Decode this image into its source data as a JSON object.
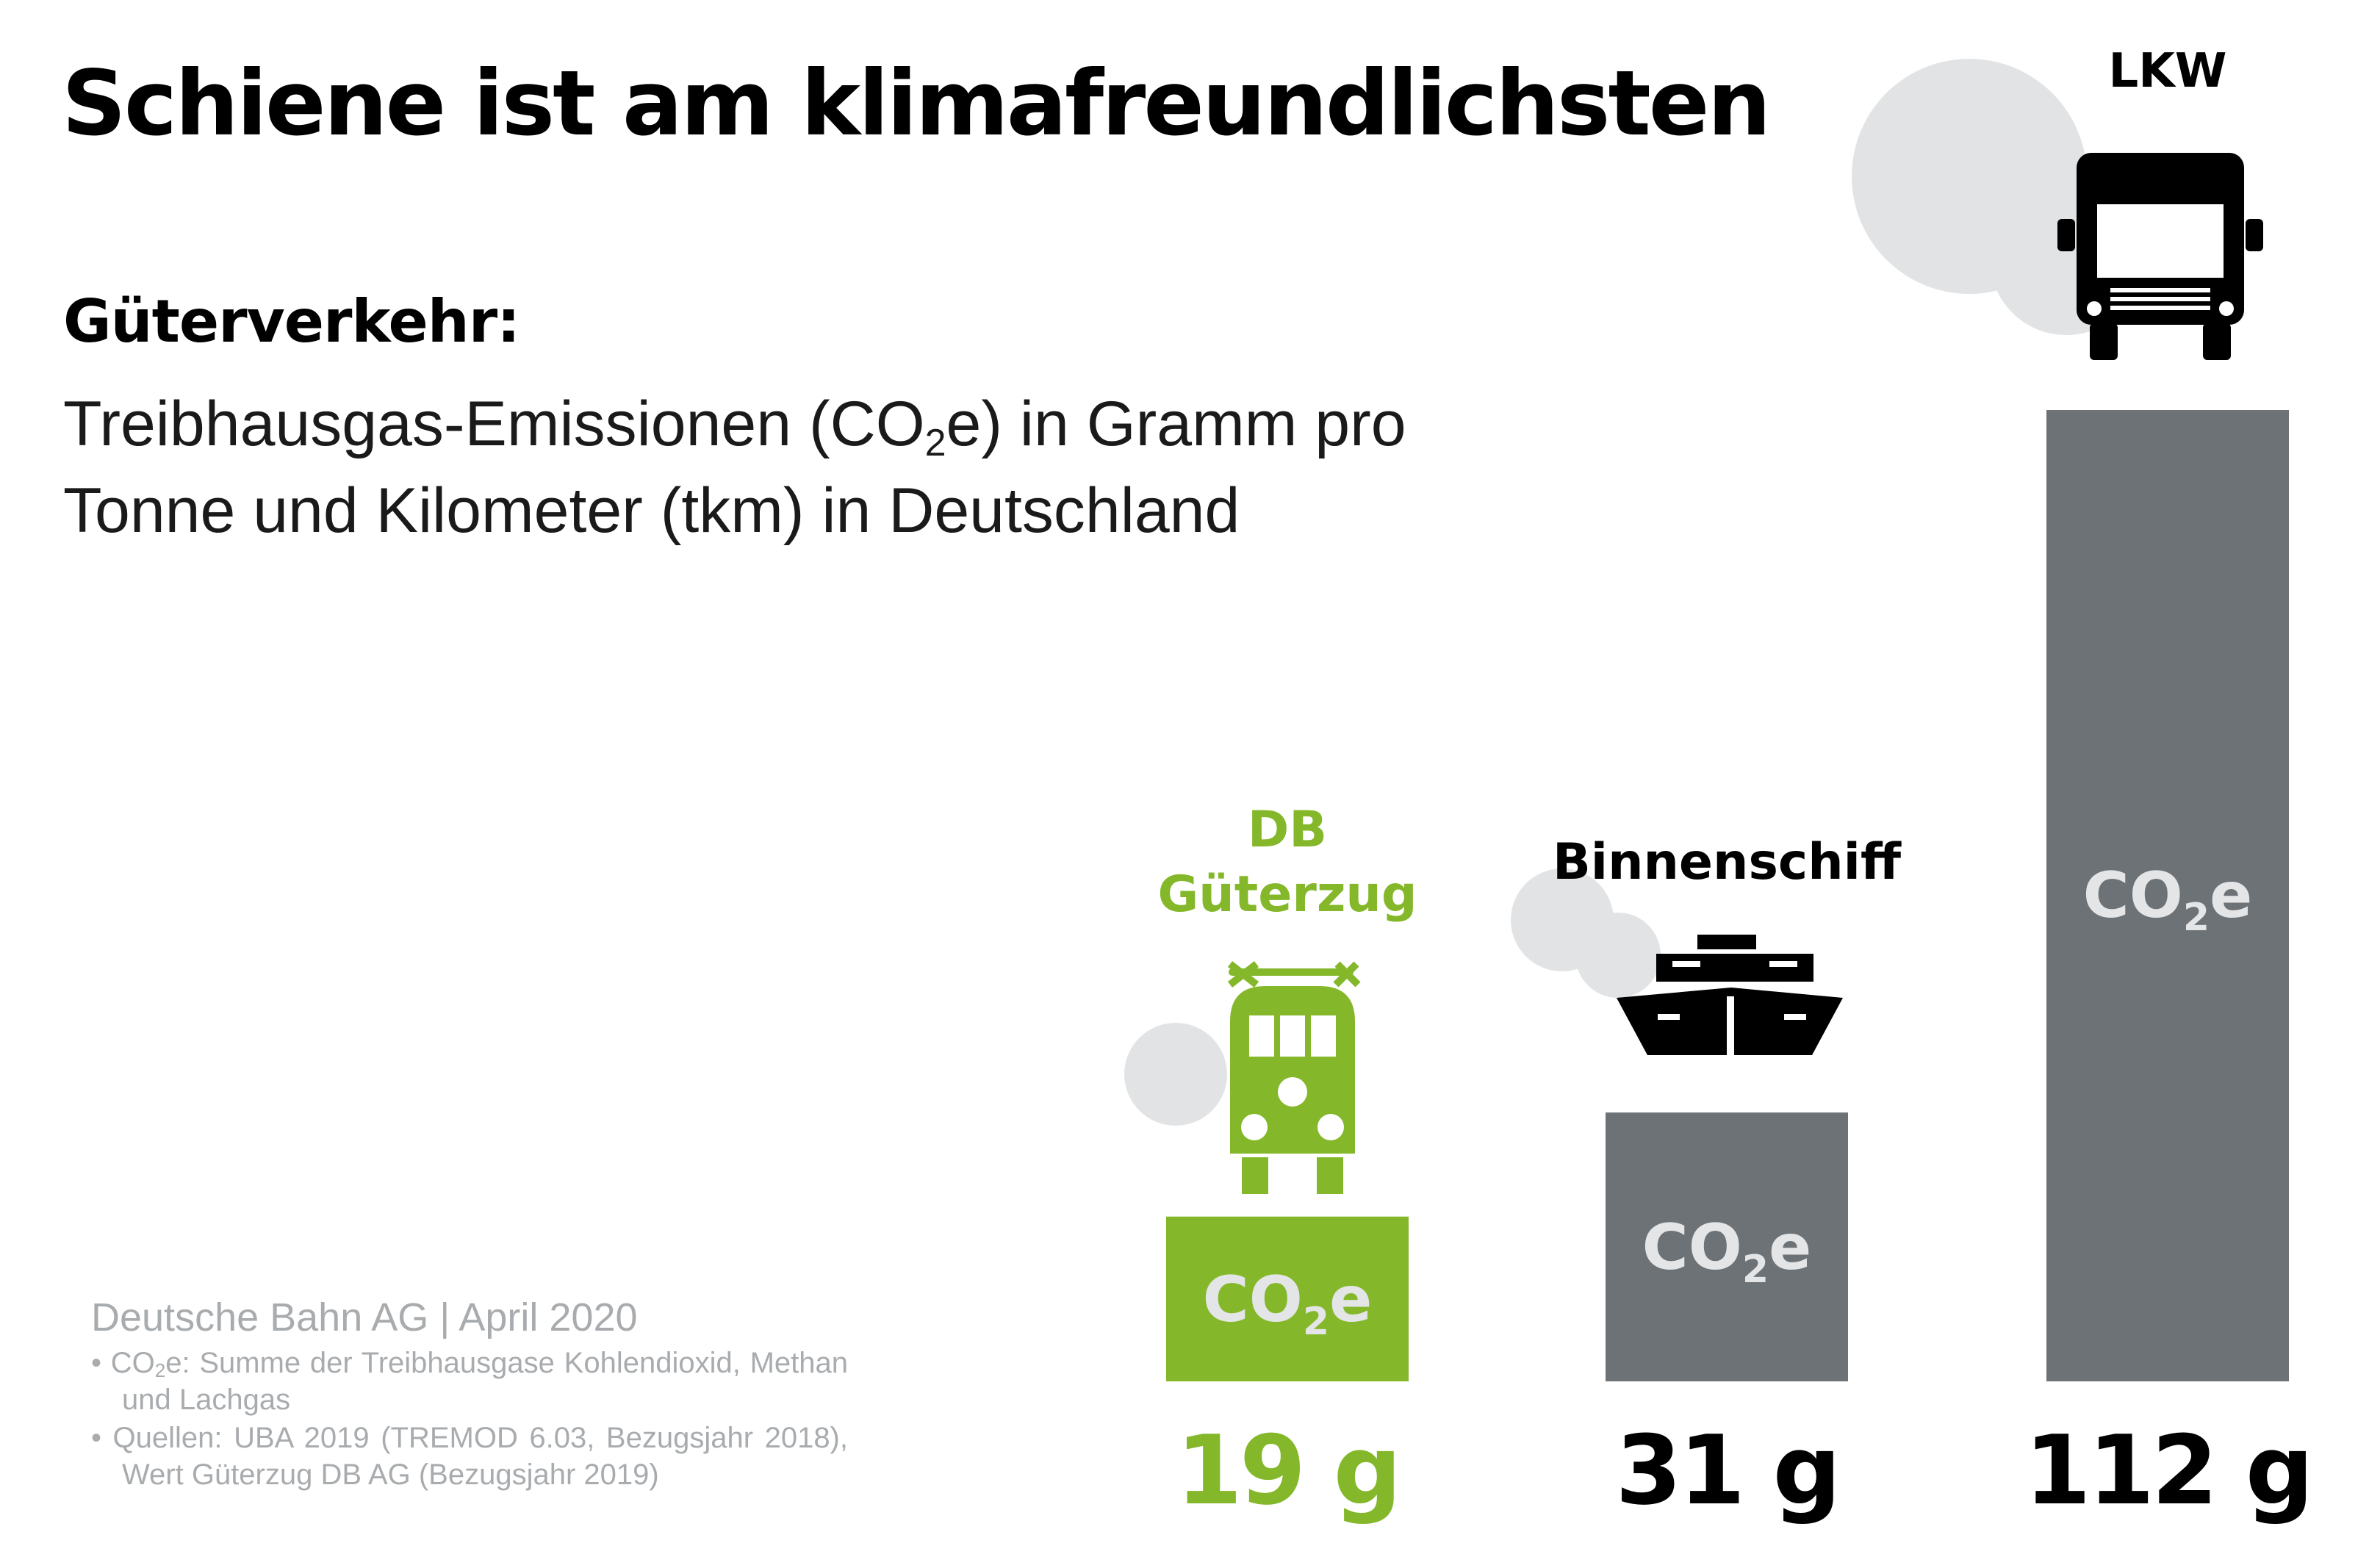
{
  "title": "Schiene ist am klimafreundlichsten",
  "subtitle": {
    "heading": "Güterverkehr:",
    "line1_a": "Treibhausgas-Emissionen (CO",
    "line1_sub": "2",
    "line1_b": "e) in Gramm pro",
    "line2": "Tonne und Kilometer (tkm) in Deutschland"
  },
  "source": {
    "org": "Deutsche Bahn AG | April 2020",
    "note1_a": "• CO",
    "note1_sub": "2",
    "note1_b": "e: Summe der Treibhausgase Kohlendioxid, Methan und Lachgas",
    "note2": "• Quellen: UBA 2019 (TREMOD 6.03, Bezugsjahr 2018), Wert Güterzug DB AG (Bezugsjahr 2019)"
  },
  "colors": {
    "green": "#84b82a",
    "gray": "#6d7276",
    "cloud": "#e1e3e4",
    "co2_text": "#e4e5e6",
    "black": "#000000"
  },
  "chart_data": {
    "type": "bar",
    "title": "Schiene ist am klimafreundlichsten",
    "ylabel": "Treibhausgas-Emissionen (CO2e) in Gramm pro Tonne und Kilometer (tkm) in Deutschland",
    "xlabel": "",
    "categories": [
      "DB Güterzug",
      "Binnenschiff",
      "LKW"
    ],
    "values": [
      19,
      31,
      112
    ],
    "unit": "g",
    "ylim": [
      0,
      112
    ],
    "grid": false,
    "bar_text": {
      "main": "CO",
      "sub": "2",
      "tail": "e"
    },
    "bars": [
      {
        "label_lines": [
          "DB",
          "Güterzug"
        ],
        "value_label": "19 g",
        "color": "#84b82a",
        "icon": "locomotive-icon",
        "highlight": true
      },
      {
        "label_lines": [
          "Binnenschiff"
        ],
        "value_label": "31 g",
        "color": "#6d7276",
        "icon": "ship-icon",
        "highlight": false
      },
      {
        "label_lines": [
          "LKW"
        ],
        "value_label": "112 g",
        "color": "#6d7276",
        "icon": "truck-icon",
        "highlight": false
      }
    ]
  }
}
